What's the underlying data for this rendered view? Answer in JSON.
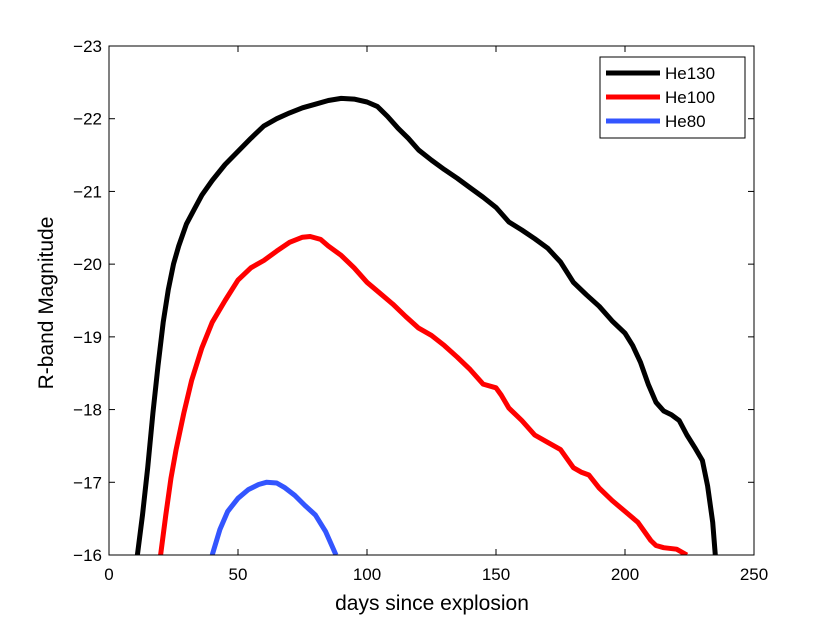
{
  "chart_data": {
    "type": "line",
    "title": "",
    "xlabel": "days since explosion",
    "ylabel": "R-band Magnitude",
    "xlim": [
      0,
      250
    ],
    "ylim": [
      -16,
      -23
    ],
    "y_reversed": true,
    "grid": false,
    "legend_position": "top-right",
    "x_ticks": [
      0,
      50,
      100,
      150,
      200,
      250
    ],
    "x_tick_labels": [
      "0",
      "50",
      "100",
      "150",
      "200",
      "250"
    ],
    "y_ticks": [
      -23,
      -22,
      -21,
      -20,
      -19,
      -18,
      -17,
      -16
    ],
    "y_tick_labels": [
      "−23",
      "−22",
      "−21",
      "−20",
      "−19",
      "−18",
      "−17",
      "−16"
    ],
    "series": [
      {
        "name": "He130",
        "color": "#000000",
        "x": [
          11,
          13,
          15,
          17,
          19,
          21,
          23,
          25,
          27,
          30,
          33,
          36,
          40,
          45,
          50,
          55,
          60,
          65,
          70,
          75,
          80,
          85,
          90,
          95,
          100,
          104,
          108,
          112,
          116,
          120,
          125,
          130,
          135,
          140,
          145,
          150,
          155,
          160,
          165,
          170,
          175,
          180,
          185,
          190,
          195,
          200,
          203,
          206,
          209,
          212,
          215,
          218,
          221,
          224,
          227,
          230,
          232,
          234,
          235
        ],
        "y": [
          -16.0,
          -16.55,
          -17.2,
          -17.95,
          -18.6,
          -19.2,
          -19.65,
          -20.0,
          -20.25,
          -20.55,
          -20.75,
          -20.95,
          -21.15,
          -21.37,
          -21.55,
          -21.73,
          -21.9,
          -22.0,
          -22.08,
          -22.15,
          -22.2,
          -22.25,
          -22.28,
          -22.27,
          -22.23,
          -22.17,
          -22.03,
          -21.87,
          -21.73,
          -21.57,
          -21.43,
          -21.3,
          -21.18,
          -21.05,
          -20.92,
          -20.78,
          -20.58,
          -20.47,
          -20.35,
          -20.22,
          -20.03,
          -19.75,
          -19.58,
          -19.42,
          -19.22,
          -19.05,
          -18.88,
          -18.65,
          -18.35,
          -18.1,
          -17.98,
          -17.93,
          -17.85,
          -17.65,
          -17.48,
          -17.3,
          -16.95,
          -16.45,
          -16.0
        ]
      },
      {
        "name": "He100",
        "color": "#ff0000",
        "x": [
          20,
          22,
          24,
          26,
          29,
          32,
          36,
          40,
          45,
          50,
          55,
          60,
          65,
          70,
          75,
          78,
          82,
          85,
          90,
          95,
          100,
          105,
          110,
          115,
          120,
          125,
          130,
          135,
          140,
          145,
          150,
          152,
          155,
          160,
          165,
          170,
          175,
          180,
          183,
          186,
          190,
          195,
          200,
          205,
          210,
          212,
          215,
          220,
          224
        ],
        "y": [
          -16.0,
          -16.55,
          -17.05,
          -17.45,
          -17.95,
          -18.4,
          -18.85,
          -19.2,
          -19.5,
          -19.78,
          -19.95,
          -20.05,
          -20.18,
          -20.3,
          -20.37,
          -20.38,
          -20.34,
          -20.25,
          -20.12,
          -19.95,
          -19.75,
          -19.6,
          -19.45,
          -19.28,
          -19.12,
          -19.02,
          -18.88,
          -18.72,
          -18.55,
          -18.35,
          -18.3,
          -18.2,
          -18.02,
          -17.85,
          -17.65,
          -17.55,
          -17.45,
          -17.2,
          -17.14,
          -17.1,
          -16.92,
          -16.75,
          -16.6,
          -16.45,
          -16.2,
          -16.13,
          -16.1,
          -16.08,
          -16.0
        ]
      },
      {
        "name": "He80",
        "color": "#3355ff",
        "x": [
          40,
          43,
          46,
          50,
          54,
          58,
          61,
          65,
          68,
          72,
          76,
          80,
          84,
          88
        ],
        "y": [
          -16.0,
          -16.35,
          -16.6,
          -16.78,
          -16.9,
          -16.97,
          -17.0,
          -16.99,
          -16.93,
          -16.82,
          -16.68,
          -16.55,
          -16.32,
          -16.0
        ]
      }
    ]
  }
}
